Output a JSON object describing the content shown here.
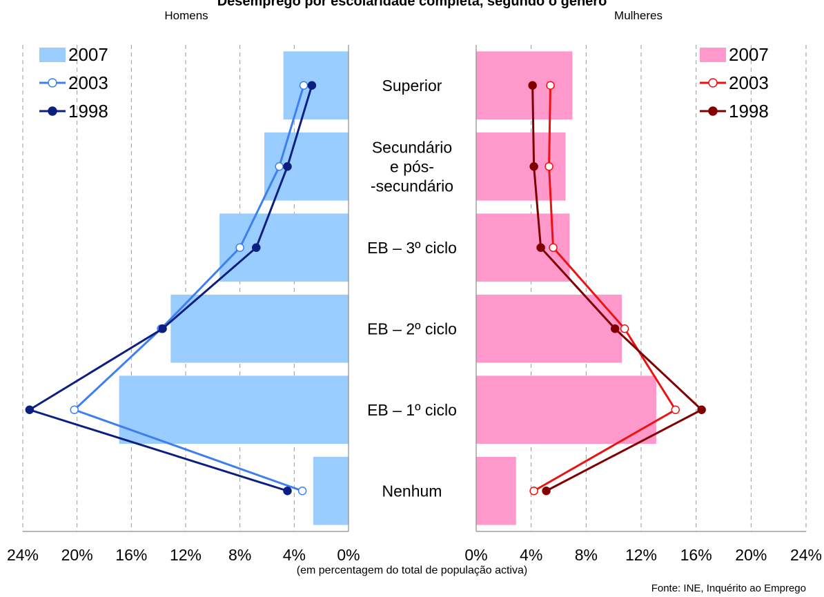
{
  "title": "Desemprego por escolaridade completa, segundo o género",
  "source": "Fonte: INE, Inquérito ao Emprego",
  "axis_note": "(em percentagem do total de população activa)",
  "chart_data": {
    "type": "bar",
    "title": "Desemprego por escolaridade completa, segundo o género",
    "xlabel": "(em percentagem do total de população activa)",
    "categories": [
      "Superior",
      "Secundário e pós-secundário",
      "EB – 3º ciclo",
      "EB – 2º ciclo",
      "EB – 1º ciclo",
      "Nenhum"
    ],
    "category_lines": [
      [
        "Superior"
      ],
      [
        "Secundário",
        "e pós-",
        "-secundário"
      ],
      [
        "EB – 3º ciclo"
      ],
      [
        "EB – 2º ciclo"
      ],
      [
        "EB – 1º ciclo"
      ],
      [
        "Nenhum"
      ]
    ],
    "xlim": [
      0,
      24
    ],
    "xticks": [
      0,
      4,
      8,
      12,
      16,
      20,
      24
    ],
    "xtick_labels": [
      "0%",
      "4%",
      "8%",
      "12%",
      "16%",
      "20%",
      "24%"
    ],
    "grid": true,
    "panels": [
      {
        "name": "Homens",
        "direction": "left",
        "legend_position": "top-left",
        "colors": {
          "bar": "#99ccff",
          "line2003": "#3d7ff0",
          "line1998": "#0a1f80"
        },
        "series": [
          {
            "name": "2007",
            "kind": "bar",
            "values": [
              4.8,
              6.2,
              9.5,
              13.1,
              16.9,
              2.6
            ]
          },
          {
            "name": "2003",
            "kind": "line-hollow",
            "values": [
              3.3,
              5.1,
              8.0,
              13.8,
              20.2,
              3.4
            ]
          },
          {
            "name": "1998",
            "kind": "line-filled",
            "values": [
              2.7,
              4.5,
              6.8,
              13.7,
              23.5,
              4.5
            ]
          }
        ]
      },
      {
        "name": "Mulheres",
        "direction": "right",
        "legend_position": "top-right",
        "colors": {
          "bar": "#ff99cc",
          "line2003": "#ee1111",
          "line1998": "#800000"
        },
        "series": [
          {
            "name": "2007",
            "kind": "bar",
            "values": [
              7.0,
              6.5,
              6.8,
              10.6,
              13.1,
              2.9
            ]
          },
          {
            "name": "2003",
            "kind": "line-hollow",
            "values": [
              5.4,
              5.3,
              5.6,
              10.8,
              14.5,
              4.2
            ]
          },
          {
            "name": "1998",
            "kind": "line-filled",
            "values": [
              4.1,
              4.2,
              4.7,
              10.1,
              16.4,
              5.1
            ]
          }
        ]
      }
    ]
  }
}
